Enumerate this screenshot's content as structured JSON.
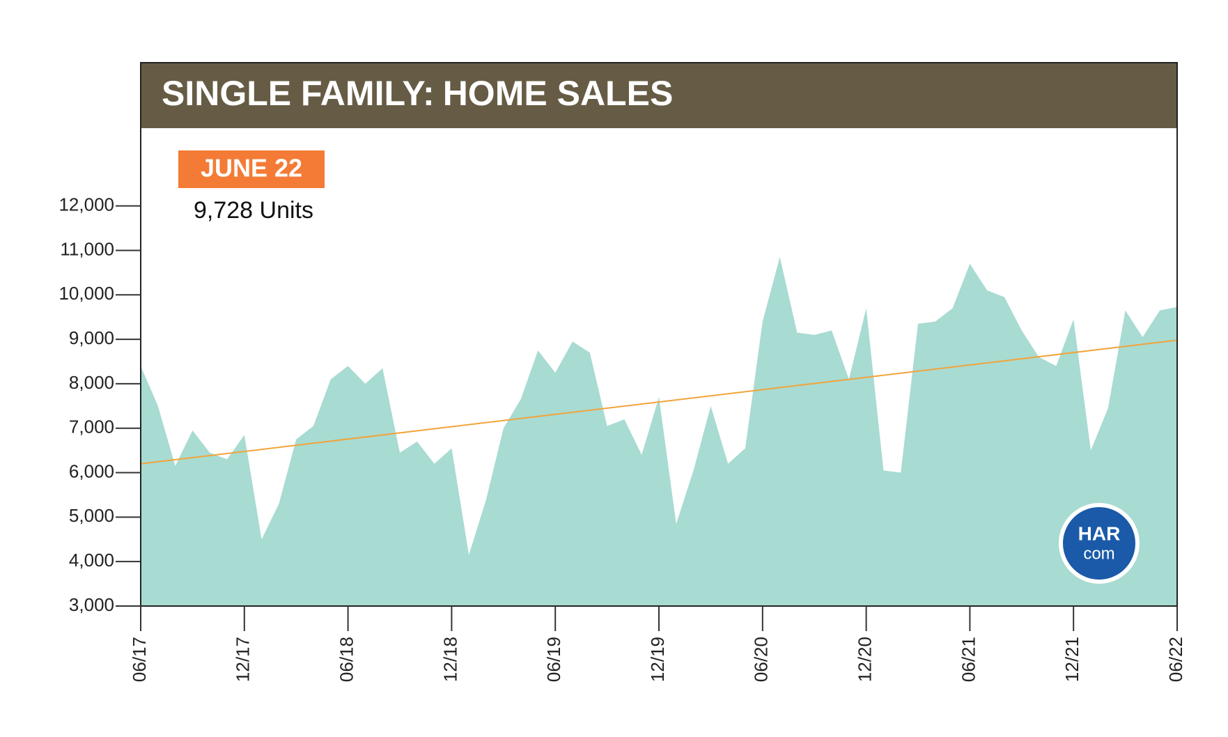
{
  "chart_data": {
    "type": "area",
    "title_bold": "SINGLE FAMILY:",
    "title_rest": "HOME SALES",
    "annotation_label": "JUNE 22",
    "annotation_value": "9,728 Units",
    "logo_top": "HAR",
    "logo_bottom": "com",
    "categories": [
      "06/17",
      null,
      null,
      null,
      null,
      null,
      "12/17",
      null,
      null,
      null,
      null,
      null,
      "06/18",
      null,
      null,
      null,
      null,
      null,
      "12/18",
      null,
      null,
      null,
      null,
      null,
      "06/19",
      null,
      null,
      null,
      null,
      null,
      "12/19",
      null,
      null,
      null,
      null,
      null,
      "06/20",
      null,
      null,
      null,
      null,
      null,
      "12/20",
      null,
      null,
      null,
      null,
      null,
      "06/21",
      null,
      null,
      null,
      null,
      null,
      "12/21",
      null,
      null,
      null,
      null,
      null,
      "06/22"
    ],
    "series": [
      {
        "color": "#a8dbd2",
        "values": [
          8400,
          7500,
          6150,
          6950,
          6450,
          6300,
          6850,
          4500,
          5300,
          6750,
          7050,
          8100,
          8400,
          8000,
          8350,
          6450,
          6700,
          6200,
          6550,
          4150,
          5400,
          7000,
          7650,
          8750,
          8250,
          8950,
          8700,
          7050,
          7200,
          6400,
          7700,
          4850,
          6050,
          7500,
          6200,
          6550,
          9400,
          10850,
          9150,
          9100,
          9200,
          8100,
          9700,
          6050,
          6000,
          9350,
          9400,
          9700,
          10700,
          10100,
          9950,
          9200,
          8600,
          8400,
          9450,
          6500,
          7450,
          9650,
          9050,
          9650,
          9728
        ]
      }
    ],
    "trend_line": {
      "color": "#f2a33a",
      "values": [
        6200,
        8980
      ]
    },
    "ylim": [
      3000,
      13750
    ],
    "yticks": [
      {
        "value": 3000,
        "label": "3,000"
      },
      {
        "value": 4000,
        "label": "4,000"
      },
      {
        "value": 5000,
        "label": "5,000"
      },
      {
        "value": 6000,
        "label": "6,000"
      },
      {
        "value": 7000,
        "label": "7,000"
      },
      {
        "value": 8000,
        "label": "8,000"
      },
      {
        "value": 9000,
        "label": "9,000"
      },
      {
        "value": 10000,
        "label": "10,000"
      },
      {
        "value": 11000,
        "label": "11,000"
      },
      {
        "value": 12000,
        "label": "12,000"
      }
    ]
  }
}
